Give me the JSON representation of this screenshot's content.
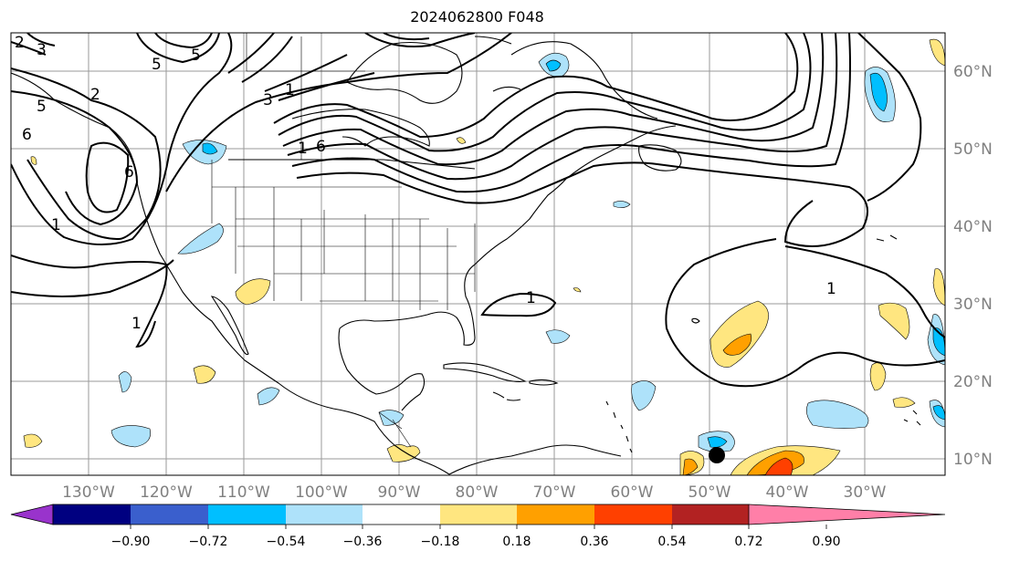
{
  "title": "2024062800 F048",
  "lat_labels": [
    "10°N",
    "20°N",
    "30°N",
    "40°N",
    "50°N",
    "60°N"
  ],
  "lon_labels": [
    "130°W",
    "120°W",
    "110°W",
    "100°W",
    "90°W",
    "80°W",
    "70°W",
    "60°W",
    "50°W",
    "40°W",
    "30°W"
  ],
  "colorbar": {
    "ticks": [
      "−0.90",
      "−0.72",
      "−0.54",
      "−0.36",
      "−0.18",
      "0.18",
      "0.36",
      "0.54",
      "0.72",
      "0.90"
    ],
    "colors": [
      "#9933cc",
      "#000080",
      "#3a5fcd",
      "#00bfff",
      "#aee2fa",
      "#ffffff",
      "#ffe680",
      "#ffa000",
      "#ff4000",
      "#b22222",
      "#ff7fa8"
    ]
  },
  "contour_labels": [
    "2",
    "3",
    "5",
    "6",
    "5",
    "2",
    "1",
    "3",
    "1",
    "6",
    "5",
    "6",
    "1",
    "1",
    "1",
    "1"
  ],
  "marker": "storm-center"
}
